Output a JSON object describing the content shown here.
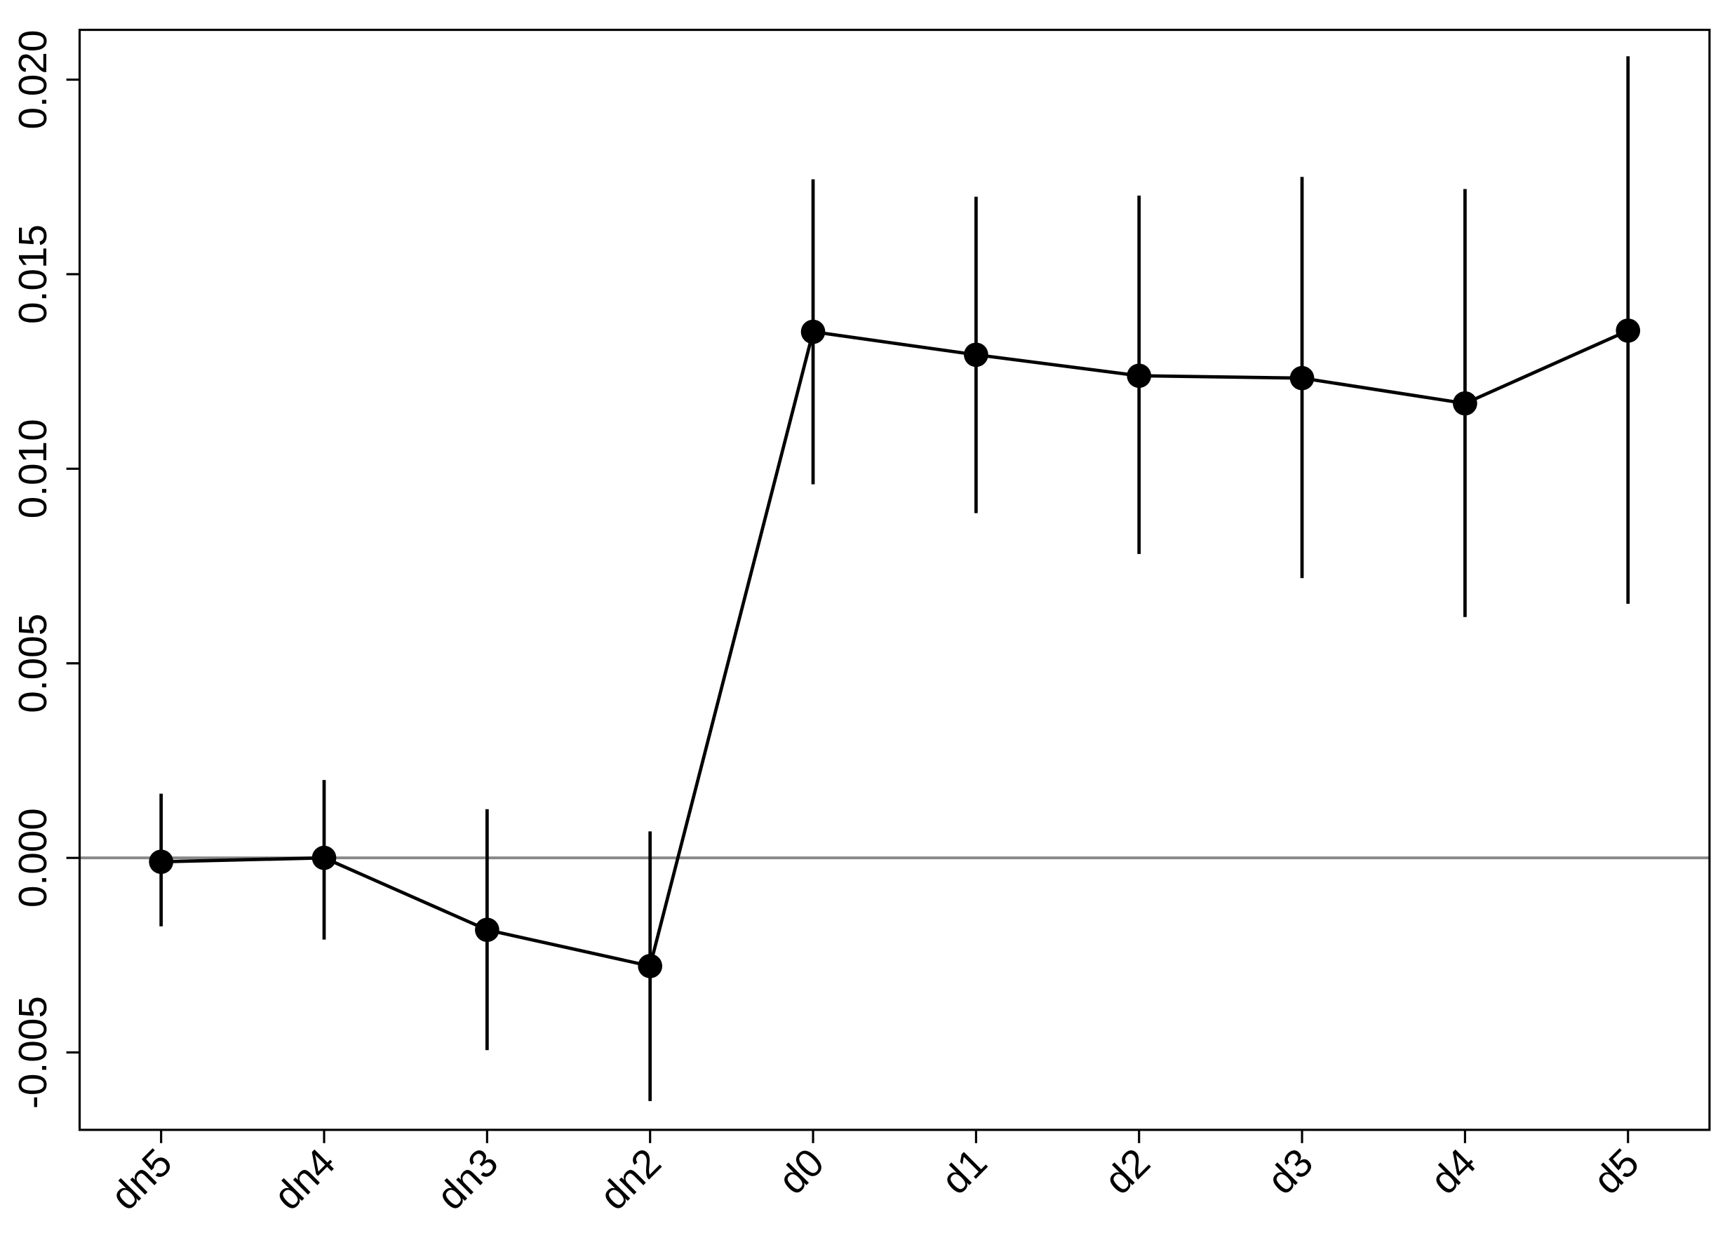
{
  "chart_data": {
    "type": "line",
    "categories": [
      "dn5",
      "dn4",
      "dn3",
      "dn2",
      "d0",
      "d1",
      "d2",
      "d3",
      "d4",
      "d5"
    ],
    "series": [
      {
        "color": "#000000",
        "values": [
          -0.0001,
          0.0,
          -0.00185,
          -0.00278,
          0.01352,
          0.01293,
          0.01239,
          0.01233,
          0.01168,
          0.01355
        ],
        "ci_lower": [
          -0.00176,
          -0.0021,
          -0.00494,
          -0.00625,
          0.0096,
          0.00886,
          0.00781,
          0.00719,
          0.00619,
          0.00653
        ],
        "ci_upper": [
          0.00165,
          0.002,
          0.00125,
          0.00068,
          0.01744,
          0.01699,
          0.01702,
          0.0175,
          0.01719,
          0.0206
        ]
      }
    ],
    "ylim": [
      -0.00699,
      0.02128
    ],
    "yticks": [
      {
        "value": -0.005,
        "label": "-0.005"
      },
      {
        "value": 0,
        "label": "0.000"
      },
      {
        "value": 0.005,
        "label": "0.005"
      },
      {
        "value": 0.01,
        "label": "0.010"
      },
      {
        "value": 0.015,
        "label": "0.015"
      },
      {
        "value": 0.02,
        "label": "0.020"
      }
    ],
    "reference_line": 0,
    "reference_color": "#888888",
    "grid": false
  }
}
